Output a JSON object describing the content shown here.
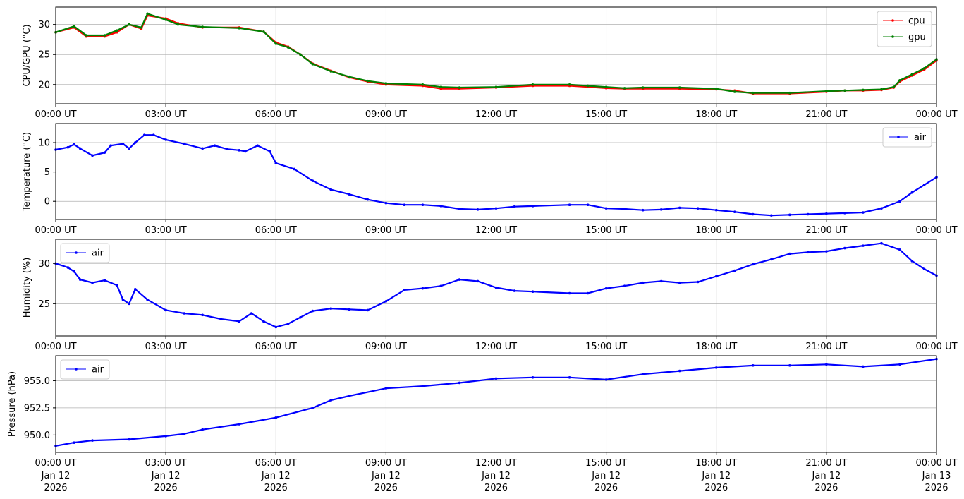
{
  "chart_data": [
    {
      "type": "line",
      "ylabel": "CPU/GPU (°C)",
      "ylim": [
        16.8,
        32.9
      ],
      "yticks": [
        20,
        25,
        30
      ],
      "ytick_labels": [
        "20",
        "25",
        "30"
      ],
      "grid": true,
      "legend": "top-right",
      "x": [
        "00:00",
        "00:30",
        "00:50",
        "01:20",
        "01:40",
        "02:00",
        "02:20",
        "02:30",
        "03:00",
        "03:20",
        "04:00",
        "05:00",
        "05:40",
        "06:00",
        "06:20",
        "06:40",
        "07:00",
        "07:30",
        "08:00",
        "08:30",
        "09:00",
        "10:00",
        "10:30",
        "11:00",
        "12:00",
        "13:00",
        "14:00",
        "14:30",
        "15:00",
        "15:30",
        "16:00",
        "17:00",
        "18:00",
        "18:30",
        "19:00",
        "20:00",
        "21:00",
        "21:30",
        "22:00",
        "22:30",
        "22:50",
        "23:00",
        "23:20",
        "23:40",
        "24:00"
      ],
      "series": [
        {
          "name": "cpu",
          "color": "#ff0000",
          "values": [
            28.7,
            29.5,
            28.0,
            28.0,
            28.7,
            30.0,
            29.3,
            31.5,
            31.0,
            30.2,
            29.5,
            29.5,
            28.8,
            27.0,
            26.3,
            25.0,
            23.5,
            22.3,
            21.2,
            20.5,
            20.0,
            19.8,
            19.3,
            19.3,
            19.5,
            19.8,
            19.8,
            19.6,
            19.4,
            19.3,
            19.3,
            19.3,
            19.2,
            19.0,
            18.5,
            18.5,
            18.8,
            19.0,
            19.0,
            19.1,
            19.5,
            20.5,
            21.5,
            22.5,
            24.0
          ]
        },
        {
          "name": "gpu",
          "color": "#008000",
          "values": [
            28.7,
            29.7,
            28.2,
            28.2,
            29.0,
            30.0,
            29.5,
            31.8,
            30.8,
            30.0,
            29.6,
            29.4,
            28.8,
            26.8,
            26.2,
            25.0,
            23.4,
            22.2,
            21.3,
            20.6,
            20.2,
            20.0,
            19.6,
            19.5,
            19.6,
            20.0,
            20.0,
            19.8,
            19.6,
            19.4,
            19.5,
            19.5,
            19.3,
            18.8,
            18.6,
            18.6,
            18.9,
            19.0,
            19.1,
            19.2,
            19.6,
            20.7,
            21.7,
            22.7,
            24.2
          ]
        }
      ]
    },
    {
      "type": "line",
      "ylabel": "Temperature (°C)",
      "ylim": [
        -3.1,
        13.25
      ],
      "yticks": [
        0,
        5,
        10
      ],
      "ytick_labels": [
        "0",
        "5",
        "10"
      ],
      "grid": true,
      "legend": "top-right",
      "x": [
        "00:00",
        "00:20",
        "00:30",
        "00:40",
        "01:00",
        "01:20",
        "01:30",
        "01:50",
        "02:00",
        "02:10",
        "02:25",
        "02:40",
        "03:00",
        "03:30",
        "04:00",
        "04:20",
        "04:40",
        "05:00",
        "05:10",
        "05:30",
        "05:50",
        "06:00",
        "06:30",
        "07:00",
        "07:30",
        "08:00",
        "08:30",
        "09:00",
        "09:30",
        "10:00",
        "10:30",
        "11:00",
        "11:30",
        "12:00",
        "12:30",
        "13:00",
        "14:00",
        "14:30",
        "15:00",
        "15:30",
        "16:00",
        "16:30",
        "17:00",
        "17:30",
        "18:00",
        "18:30",
        "19:00",
        "19:30",
        "20:00",
        "20:30",
        "21:00",
        "21:30",
        "22:00",
        "22:30",
        "23:00",
        "23:20",
        "23:40",
        "24:00"
      ],
      "series": [
        {
          "name": "air",
          "color": "#0000ff",
          "values": [
            8.8,
            9.2,
            9.7,
            9.0,
            7.8,
            8.3,
            9.5,
            9.8,
            9.0,
            10.0,
            11.3,
            11.3,
            10.5,
            9.8,
            9.0,
            9.5,
            8.9,
            8.7,
            8.5,
            9.5,
            8.5,
            6.5,
            5.5,
            3.5,
            2.0,
            1.2,
            0.3,
            -0.3,
            -0.6,
            -0.6,
            -0.8,
            -1.3,
            -1.4,
            -1.2,
            -0.9,
            -0.8,
            -0.6,
            -0.6,
            -1.2,
            -1.3,
            -1.5,
            -1.4,
            -1.1,
            -1.2,
            -1.5,
            -1.8,
            -2.2,
            -2.4,
            -2.3,
            -2.2,
            -2.1,
            -2.0,
            -1.9,
            -1.2,
            0.0,
            1.5,
            2.8,
            4.1
          ]
        }
      ]
    },
    {
      "type": "line",
      "ylabel": "Humidity (%)",
      "ylim": [
        21.0,
        33.0
      ],
      "yticks": [
        25,
        30
      ],
      "ytick_labels": [
        "25",
        "30"
      ],
      "grid": true,
      "legend": "top-left",
      "x": [
        "00:00",
        "00:20",
        "00:30",
        "00:40",
        "01:00",
        "01:20",
        "01:40",
        "01:50",
        "02:00",
        "02:10",
        "02:30",
        "03:00",
        "03:30",
        "04:00",
        "04:30",
        "05:00",
        "05:20",
        "05:40",
        "06:00",
        "06:20",
        "06:40",
        "07:00",
        "07:30",
        "08:00",
        "08:30",
        "09:00",
        "09:30",
        "10:00",
        "10:30",
        "11:00",
        "11:30",
        "12:00",
        "12:30",
        "13:00",
        "14:00",
        "14:30",
        "15:00",
        "15:30",
        "16:00",
        "16:30",
        "17:00",
        "17:30",
        "18:00",
        "18:30",
        "19:00",
        "19:30",
        "20:00",
        "20:30",
        "21:00",
        "21:30",
        "22:00",
        "22:30",
        "23:00",
        "23:20",
        "23:40",
        "24:00"
      ],
      "series": [
        {
          "name": "air",
          "color": "#0000ff",
          "values": [
            30.0,
            29.5,
            29.0,
            28.0,
            27.6,
            27.9,
            27.3,
            25.5,
            25.0,
            26.8,
            25.5,
            24.2,
            23.8,
            23.6,
            23.1,
            22.8,
            23.8,
            22.8,
            22.1,
            22.5,
            23.3,
            24.1,
            24.4,
            24.3,
            24.2,
            25.3,
            26.7,
            26.9,
            27.2,
            28.0,
            27.8,
            27.0,
            26.6,
            26.5,
            26.3,
            26.3,
            26.9,
            27.2,
            27.6,
            27.8,
            27.6,
            27.7,
            28.4,
            29.1,
            29.9,
            30.5,
            31.2,
            31.4,
            31.5,
            31.9,
            32.2,
            32.5,
            31.7,
            30.3,
            29.3,
            28.5
          ]
        }
      ]
    },
    {
      "type": "line",
      "ylabel": "Pressure (hPa)",
      "ylim": [
        948.4,
        957.3
      ],
      "yticks": [
        950.0,
        952.5,
        955.0
      ],
      "ytick_labels": [
        "950.0",
        "952.5",
        "955.0"
      ],
      "grid": true,
      "legend": "top-left",
      "x": [
        "00:00",
        "00:30",
        "01:00",
        "02:00",
        "03:00",
        "03:30",
        "04:00",
        "05:00",
        "06:00",
        "07:00",
        "07:30",
        "08:00",
        "09:00",
        "10:00",
        "11:00",
        "12:00",
        "13:00",
        "14:00",
        "15:00",
        "16:00",
        "17:00",
        "18:00",
        "19:00",
        "20:00",
        "21:00",
        "22:00",
        "23:00",
        "24:00"
      ],
      "series": [
        {
          "name": "air",
          "color": "#0000ff",
          "values": [
            949.0,
            949.3,
            949.5,
            949.6,
            949.9,
            950.1,
            950.5,
            951.0,
            951.6,
            952.5,
            953.2,
            953.6,
            954.3,
            954.5,
            954.8,
            955.2,
            955.3,
            955.3,
            955.1,
            955.6,
            955.9,
            956.2,
            956.4,
            956.4,
            956.5,
            956.3,
            956.5,
            957.0
          ]
        }
      ]
    }
  ],
  "xticks": [
    "00:00",
    "03:00",
    "06:00",
    "09:00",
    "12:00",
    "15:00",
    "18:00",
    "21:00",
    "24:00"
  ],
  "xtick_labels": [
    "00:00 UT",
    "03:00 UT",
    "06:00 UT",
    "09:00 UT",
    "12:00 UT",
    "15:00 UT",
    "18:00 UT",
    "21:00 UT",
    "00:00 UT"
  ],
  "xtick_date_labels": [
    "Jan 12",
    "Jan 12",
    "Jan 12",
    "Jan 12",
    "Jan 12",
    "Jan 12",
    "Jan 12",
    "Jan 12",
    "Jan 13"
  ],
  "xtick_year_labels": [
    "2026",
    "2026",
    "2026",
    "2026",
    "2026",
    "2026",
    "2026",
    "2026",
    "2026"
  ]
}
